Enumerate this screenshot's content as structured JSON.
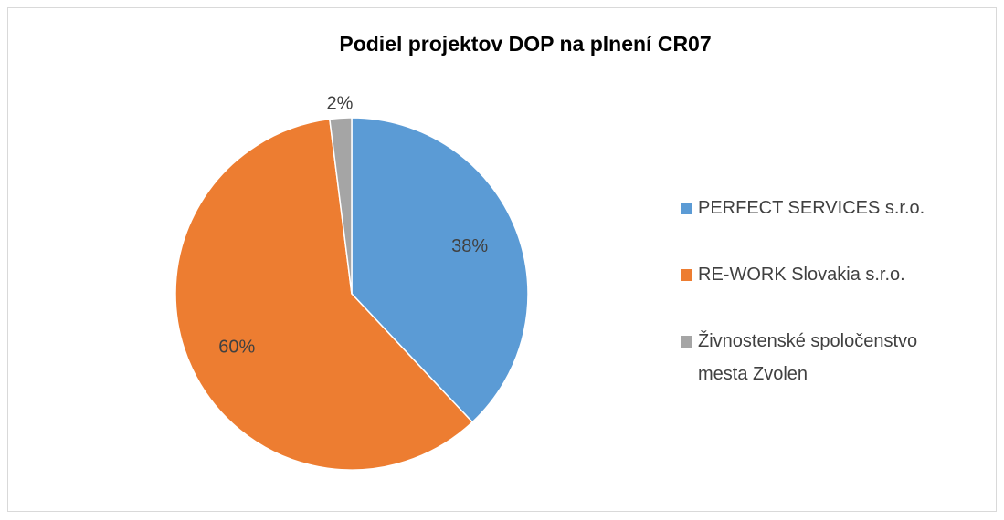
{
  "chart_data": {
    "type": "pie",
    "title": "Podiel projektov DOP na plnení CR07",
    "categories": [
      "PERFECT SERVICES s.r.o.",
      "RE-WORK Slovakia s.r.o.",
      "Živnostenské spoločenstvo mesta Zvolen"
    ],
    "values": [
      38,
      60,
      2
    ],
    "value_labels": [
      "38%",
      "60%",
      "2%"
    ],
    "colors": [
      "#5b9bd5",
      "#ed7d31",
      "#a5a5a5"
    ],
    "legend": "right"
  }
}
